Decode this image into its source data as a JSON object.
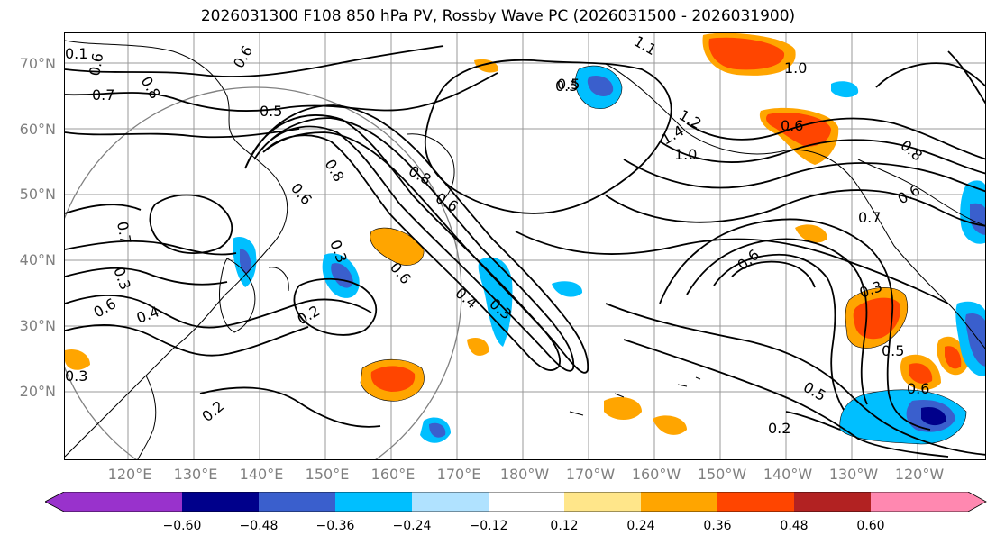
{
  "title": "2026031300 F108 850 hPa PV, Rossby Wave PC (2026031500 - 2026031900)",
  "lat_labels": [
    "70°N",
    "60°N",
    "50°N",
    "40°N",
    "30°N",
    "20°N"
  ],
  "lon_labels": [
    "120°E",
    "130°E",
    "140°E",
    "150°E",
    "160°E",
    "170°E",
    "180°W",
    "170°W",
    "160°W",
    "150°W",
    "140°W",
    "130°W",
    "120°W"
  ],
  "contour_labels": [
    "0.6",
    "0.7",
    "0.8",
    "0.5",
    "0.5",
    "0.6",
    "0.7",
    "0.3",
    "0.6",
    "0.4",
    "0.8",
    "0.6",
    "0.3",
    "0.2",
    "0.8",
    "0.6",
    "0.4",
    "0.3",
    "0.6",
    "1.2",
    "1.4",
    "1.0",
    "1.0",
    "0.6",
    "0.8",
    "0.6",
    "0.7",
    "0.6",
    "0.3",
    "0.5",
    "0.5",
    "0.6",
    "0.2",
    "0.2",
    "0.3",
    "0.5",
    "1.1",
    "0.1"
  ],
  "colorbar": {
    "ticks": [
      "−0.60",
      "−0.48",
      "−0.36",
      "−0.24",
      "−0.12",
      "0.12",
      "0.24",
      "0.36",
      "0.48",
      "0.60"
    ],
    "colors": [
      "#9932cc",
      "#00008b",
      "#3a5fcd",
      "#00bfff",
      "#b0e2ff",
      "#ffffff",
      "#ffe68a",
      "#ffa500",
      "#ff4500",
      "#b22222",
      "#ff88b0"
    ]
  }
}
